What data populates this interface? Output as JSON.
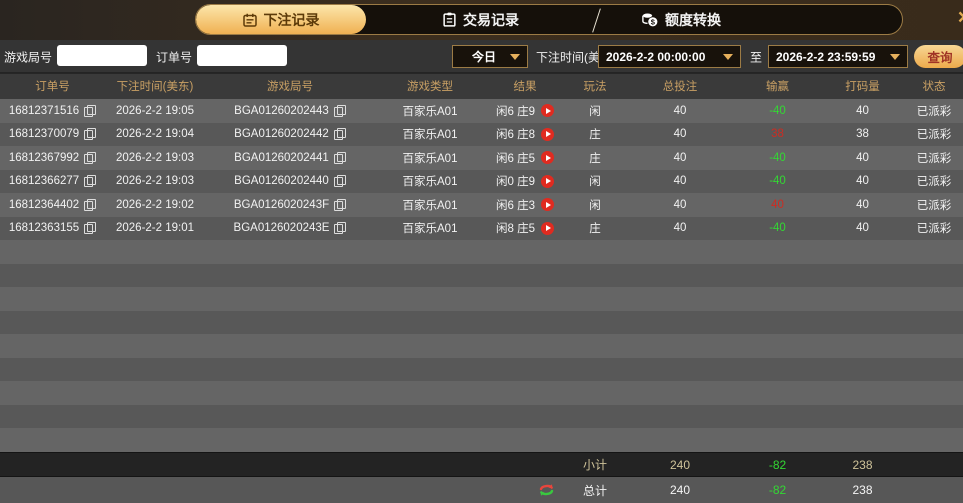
{
  "colors": {
    "accent_gold": "#e9b45c",
    "win_red": "#cd2c22",
    "loss_green": "#33d833",
    "active_tab_gradient": [
      "#fce6ab",
      "#f0b152"
    ]
  },
  "window": {
    "close_glyph": "×"
  },
  "tabs": [
    {
      "label": "下注记录",
      "icon": "calendar-icon",
      "active": true
    },
    {
      "label": "交易记录",
      "icon": "clipboard-icon",
      "active": false
    },
    {
      "label": "额度转换",
      "icon": "coins-icon",
      "active": false
    }
  ],
  "filters": {
    "game_round_label": "游戏局号",
    "game_round_value": "",
    "order_label": "订单号",
    "order_value": "",
    "quick_range_value": "今日",
    "bet_time_label": "下注时间(美东)",
    "time_from_value": "2026-2-2 00:00:00",
    "to_label": "至",
    "time_to_value": "2026-2-2 23:59:59",
    "search_label": "查询"
  },
  "table": {
    "headers": [
      "订单号",
      "下注时间(美东)",
      "游戏局号",
      "游戏类型",
      "结果",
      "玩法",
      "总投注",
      "输赢",
      "打码量",
      "状态"
    ],
    "rows": [
      {
        "order_id": "16812371516",
        "bet_time": "2026-2-2 19:05",
        "game_round": "BGA01260202443",
        "game_type": "百家乐A01",
        "result": "闲6 庄9",
        "play": "闲",
        "total_bet": "40",
        "win_loss": "-40",
        "win_loss_color": "green",
        "turnover": "40",
        "status": "已派彩"
      },
      {
        "order_id": "16812370079",
        "bet_time": "2026-2-2 19:04",
        "game_round": "BGA01260202442",
        "game_type": "百家乐A01",
        "result": "闲6 庄8",
        "play": "庄",
        "total_bet": "40",
        "win_loss": "38",
        "win_loss_color": "red",
        "turnover": "38",
        "status": "已派彩"
      },
      {
        "order_id": "16812367992",
        "bet_time": "2026-2-2 19:03",
        "game_round": "BGA01260202441",
        "game_type": "百家乐A01",
        "result": "闲6 庄5",
        "play": "庄",
        "total_bet": "40",
        "win_loss": "-40",
        "win_loss_color": "green",
        "turnover": "40",
        "status": "已派彩"
      },
      {
        "order_id": "16812366277",
        "bet_time": "2026-2-2 19:03",
        "game_round": "BGA01260202440",
        "game_type": "百家乐A01",
        "result": "闲0 庄9",
        "play": "闲",
        "total_bet": "40",
        "win_loss": "-40",
        "win_loss_color": "green",
        "turnover": "40",
        "status": "已派彩"
      },
      {
        "order_id": "16812364402",
        "bet_time": "2026-2-2 19:02",
        "game_round": "BGA0126020243F",
        "game_type": "百家乐A01",
        "result": "闲6 庄3",
        "play": "闲",
        "total_bet": "40",
        "win_loss": "40",
        "win_loss_color": "red",
        "turnover": "40",
        "status": "已派彩"
      },
      {
        "order_id": "16812363155",
        "bet_time": "2026-2-2 19:01",
        "game_round": "BGA0126020243E",
        "game_type": "百家乐A01",
        "result": "闲8 庄5",
        "play": "庄",
        "total_bet": "40",
        "win_loss": "-40",
        "win_loss_color": "green",
        "turnover": "40",
        "status": "已派彩"
      }
    ],
    "empty_row_count": 9,
    "subtotal": {
      "label": "小计",
      "total_bet": "240",
      "win_loss": "-82",
      "turnover": "238"
    },
    "total": {
      "label": "总计",
      "total_bet": "240",
      "win_loss": "-82",
      "turnover": "238"
    }
  }
}
